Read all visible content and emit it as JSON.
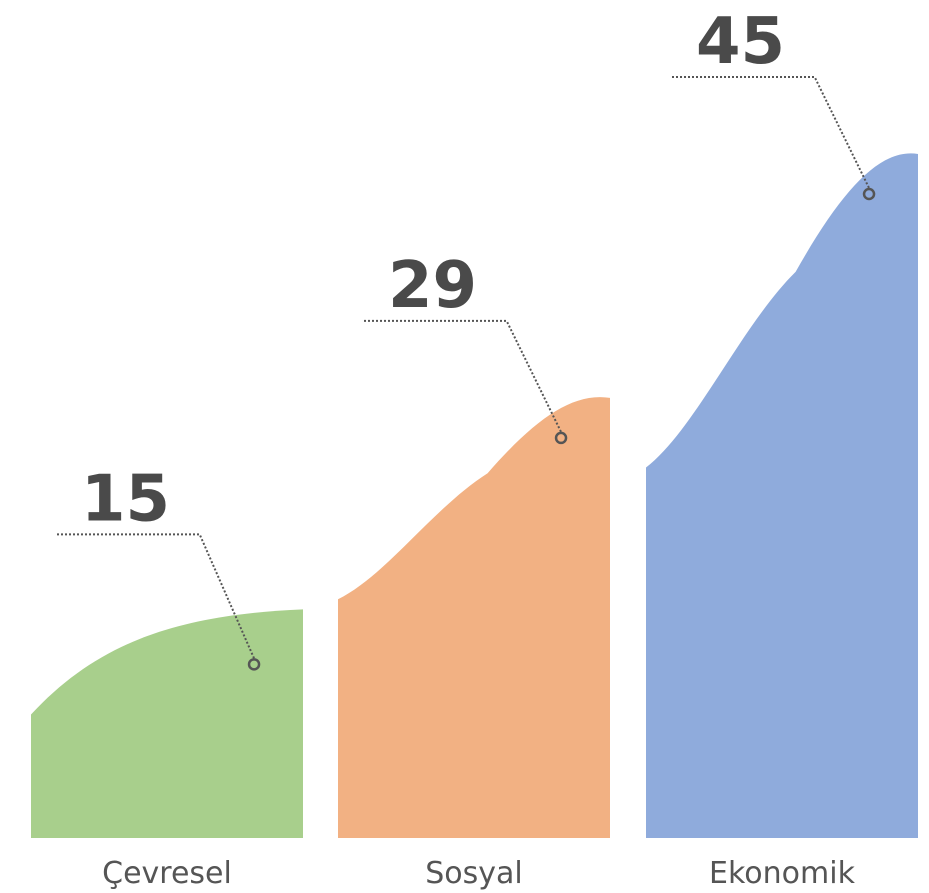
{
  "chart_data": {
    "type": "area",
    "categories": [
      "Çevresel",
      "Sosyal",
      "Ekonomik"
    ],
    "values": [
      15,
      29,
      45
    ],
    "colors": [
      "#a8cf8c",
      "#f2b183",
      "#8fabdc"
    ],
    "title": "",
    "xlabel": "",
    "ylabel": "",
    "grid": false,
    "legend": "none"
  }
}
